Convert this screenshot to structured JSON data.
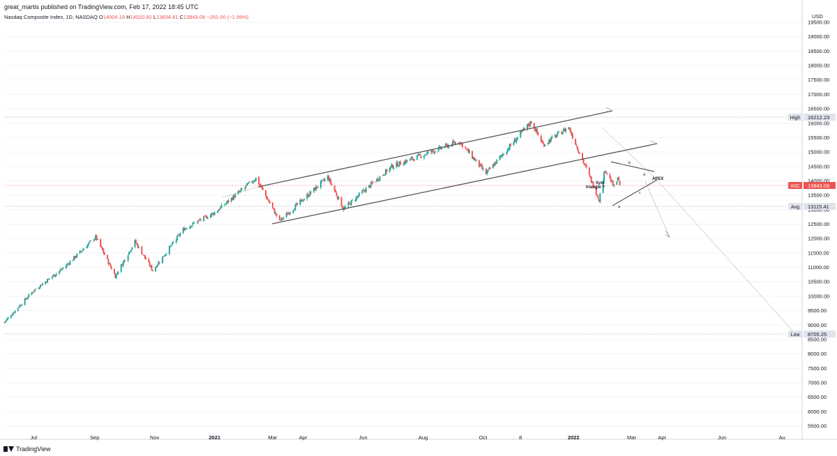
{
  "header": {
    "published": "great_martis published on TradingView.com, Feb 17, 2022 18:45 UTC",
    "symbol": "Nasdaq Composite Index, 1D, NASDAQ",
    "o_label": "O",
    "o": "14004.19",
    "h_label": "H",
    "h": "14020.82",
    "l_label": "L",
    "l": "13834.81",
    "c_label": "C",
    "c": "13843.09",
    "change": "−281.00 (−1.99%)"
  },
  "colors": {
    "up": "#26a69a",
    "down": "#ef5350",
    "grid": "#f0f3fa",
    "line": "#555555",
    "badge_gray": "#e0e3eb",
    "badge_red": "#ef5350"
  },
  "axis": {
    "currency": "USD",
    "ticks": [
      "19500.00",
      "19000.00",
      "18500.00",
      "18000.00",
      "17500.00",
      "17000.00",
      "16500.00",
      "16000.00",
      "15500.00",
      "15000.00",
      "14500.00",
      "14000.00",
      "13500.00",
      "13000.00",
      "12500.00",
      "12000.00",
      "11500.00",
      "11000.00",
      "10500.00",
      "10000.00",
      "9500.00",
      "9000.00",
      "8500.00",
      "8000.00",
      "7500.00",
      "7000.00",
      "6500.00",
      "6000.00",
      "5500.00"
    ],
    "time_labels": [
      "Jul",
      "Sep",
      "Nov",
      "2021",
      "Mar",
      "Apr",
      "Jun",
      "Aug",
      "Oct",
      "8",
      "2022",
      "Mar",
      "Apr",
      "Jun",
      "Au"
    ]
  },
  "markers": {
    "high": {
      "label": "High",
      "value": "16212.23"
    },
    "last": {
      "label": "IXIC",
      "value": "13843.09"
    },
    "avg": {
      "label": "Avg",
      "value": "13115.41"
    },
    "low": {
      "label": "Low",
      "value": "8705.25"
    }
  },
  "annotations": {
    "sym1": "Sym",
    "sym2": "triangle ?",
    "apex": "APEX",
    "a": "a",
    "b": "b",
    "c": "c",
    "d": "d"
  },
  "footer": {
    "brand": "TradingView"
  },
  "chart_data": {
    "type": "candlestick",
    "ylim": [
      5300,
      19700
    ],
    "anchors": [
      {
        "date": "2020-06-01",
        "close": 9100
      },
      {
        "date": "2020-07-01",
        "close": 10200
      },
      {
        "date": "2020-08-01",
        "close": 11000
      },
      {
        "date": "2020-09-02",
        "close": 12056
      },
      {
        "date": "2020-09-22",
        "close": 10700
      },
      {
        "date": "2020-10-12",
        "close": 11900
      },
      {
        "date": "2020-10-30",
        "close": 10900
      },
      {
        "date": "2020-12-01",
        "close": 12350
      },
      {
        "date": "2021-01-01",
        "close": 12900
      },
      {
        "date": "2021-02-12",
        "close": 14095
      },
      {
        "date": "2021-03-08",
        "close": 12609
      },
      {
        "date": "2021-04-26",
        "close": 14138
      },
      {
        "date": "2021-05-12",
        "close": 13031
      },
      {
        "date": "2021-06-30",
        "close": 14500
      },
      {
        "date": "2021-09-07",
        "close": 15374
      },
      {
        "date": "2021-10-04",
        "close": 14255
      },
      {
        "date": "2021-11-19",
        "close": 16057
      },
      {
        "date": "2021-12-01",
        "close": 15254
      },
      {
        "date": "2021-12-27",
        "close": 15871
      },
      {
        "date": "2022-01-27",
        "close": 13352
      },
      {
        "date": "2022-02-02",
        "close": 14417
      },
      {
        "date": "2022-02-11",
        "close": 13791
      },
      {
        "date": "2022-02-16",
        "close": 14124
      },
      {
        "date": "2022-02-17",
        "close": 13843
      }
    ]
  }
}
